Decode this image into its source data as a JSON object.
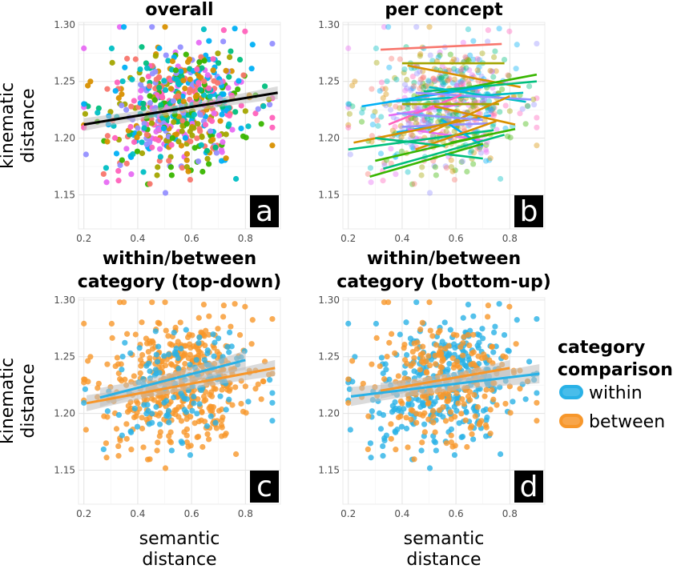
{
  "chart_data": [
    {
      "id": "a",
      "type": "scatter",
      "title": "overall",
      "panel_label": "a",
      "xlabel": "",
      "ylabel": "kinematic\ndistance",
      "xlim": [
        0.18,
        0.93
      ],
      "ylim": [
        1.12,
        1.302
      ],
      "xticks": [
        "0.2",
        "0.4",
        "0.6",
        "0.8"
      ],
      "yticks": [
        "1.15",
        "1.20",
        "1.25",
        "1.30"
      ],
      "point_colors": [
        "#F8766D",
        "#D89000",
        "#A3A500",
        "#39B600",
        "#00BF7D",
        "#00BFC4",
        "#00B0F6",
        "#9590FF",
        "#E76BF3",
        "#FF62BC"
      ],
      "fit_line": {
        "x": [
          0.2,
          0.92
        ],
        "y": [
          1.212,
          1.24
        ],
        "color": "#000000"
      },
      "band_color": "#bdbdbd"
    },
    {
      "id": "b",
      "type": "scatter",
      "title": "per concept",
      "panel_label": "b",
      "xlabel": "",
      "ylabel": "",
      "xlim": [
        0.18,
        0.93
      ],
      "ylim": [
        1.12,
        1.302
      ],
      "xticks": [
        "0.2",
        "0.4",
        "0.6",
        "0.8"
      ],
      "yticks": [
        "1.15",
        "1.20",
        "1.25",
        "1.30"
      ],
      "point_colors": [
        "#F8766D",
        "#D89000",
        "#A3A500",
        "#39B600",
        "#00BF7D",
        "#00BFC4",
        "#00B0F6",
        "#9590FF",
        "#E76BF3",
        "#FF62BC"
      ],
      "concept_lines": [
        {
          "color": "#F8766D",
          "x": [
            0.32,
            0.77
          ],
          "y": [
            1.278,
            1.283
          ]
        },
        {
          "color": "#A3A500",
          "x": [
            0.4,
            0.78
          ],
          "y": [
            1.266,
            1.266
          ]
        },
        {
          "color": "#D89000",
          "x": [
            0.42,
            0.84
          ],
          "y": [
            1.264,
            1.245
          ]
        },
        {
          "color": "#39B600",
          "x": [
            0.45,
            0.9
          ],
          "y": [
            1.236,
            1.256
          ]
        },
        {
          "color": "#00BF7D",
          "x": [
            0.48,
            0.9
          ],
          "y": [
            1.241,
            1.25
          ]
        },
        {
          "color": "#00BFC4",
          "x": [
            0.35,
            0.85
          ],
          "y": [
            1.232,
            1.24
          ]
        },
        {
          "color": "#00B0F6",
          "x": [
            0.25,
            0.7
          ],
          "y": [
            1.228,
            1.245
          ]
        },
        {
          "color": "#00BFC4",
          "x": [
            0.5,
            0.86
          ],
          "y": [
            1.245,
            1.232
          ]
        },
        {
          "color": "#9590FF",
          "x": [
            0.45,
            0.88
          ],
          "y": [
            1.24,
            1.234
          ]
        },
        {
          "color": "#E76BF3",
          "x": [
            0.35,
            0.65
          ],
          "y": [
            1.22,
            1.231
          ]
        },
        {
          "color": "#FF62BC",
          "x": [
            0.35,
            0.62
          ],
          "y": [
            1.212,
            1.238
          ]
        },
        {
          "color": "#00B0F6",
          "x": [
            0.38,
            0.73
          ],
          "y": [
            1.205,
            1.22
          ]
        },
        {
          "color": "#E76BF3",
          "x": [
            0.42,
            0.7
          ],
          "y": [
            1.208,
            1.198
          ]
        },
        {
          "color": "#9590FF",
          "x": [
            0.4,
            0.72
          ],
          "y": [
            1.21,
            1.213
          ]
        },
        {
          "color": "#00BF7D",
          "x": [
            0.2,
            0.74
          ],
          "y": [
            1.19,
            1.207
          ]
        },
        {
          "color": "#39B600",
          "x": [
            0.3,
            0.72
          ],
          "y": [
            1.18,
            1.203
          ]
        },
        {
          "color": "#00B0F6",
          "x": [
            0.55,
            0.7
          ],
          "y": [
            1.216,
            1.193
          ]
        },
        {
          "color": "#D89000",
          "x": [
            0.22,
            0.68
          ],
          "y": [
            1.196,
            1.218
          ]
        },
        {
          "color": "#D89000",
          "x": [
            0.52,
            0.82
          ],
          "y": [
            1.228,
            1.212
          ]
        },
        {
          "color": "#A3A500",
          "x": [
            0.4,
            0.76
          ],
          "y": [
            1.23,
            1.23
          ]
        },
        {
          "color": "#39B600",
          "x": [
            0.28,
            0.7
          ],
          "y": [
            1.166,
            1.195
          ]
        },
        {
          "color": "#00BF7D",
          "x": [
            0.33,
            0.78
          ],
          "y": [
            1.173,
            1.203
          ]
        },
        {
          "color": "#D89000",
          "x": [
            0.45,
            0.75
          ],
          "y": [
            1.19,
            1.215
          ]
        },
        {
          "color": "#39B600",
          "x": [
            0.58,
            0.82
          ],
          "y": [
            1.196,
            1.208
          ]
        },
        {
          "color": "#00BF7D",
          "x": [
            0.3,
            0.56
          ],
          "y": [
            1.2,
            1.193
          ]
        },
        {
          "color": "#00BF7D",
          "x": [
            0.56,
            0.7
          ],
          "y": [
            1.186,
            1.182
          ]
        },
        {
          "color": "#D89000",
          "x": [
            0.5,
            0.8
          ],
          "y": [
            1.205,
            1.237
          ]
        },
        {
          "color": "#9590FF",
          "x": [
            0.38,
            0.7
          ],
          "y": [
            1.222,
            1.216
          ]
        }
      ]
    },
    {
      "id": "c",
      "type": "scatter",
      "title": "within/between\ncategory (top-down)",
      "panel_label": "c",
      "xlabel": "semantic\ndistance",
      "ylabel": "kinematic\ndistance",
      "xlim": [
        0.18,
        0.93
      ],
      "ylim": [
        1.12,
        1.302
      ],
      "xticks": [
        "0.2",
        "0.4",
        "0.6",
        "0.8"
      ],
      "yticks": [
        "1.15",
        "1.20",
        "1.25",
        "1.30"
      ],
      "series": [
        {
          "name": "within",
          "color": "#29B1E6",
          "fit": {
            "x": [
              0.26,
              0.8
            ],
            "y": [
              1.214,
              1.247
            ]
          }
        },
        {
          "name": "between",
          "color": "#F7972B",
          "fit": {
            "x": [
              0.21,
              0.91
            ],
            "y": [
              1.209,
              1.24
            ]
          }
        }
      ],
      "band_color": "#bdbdbd"
    },
    {
      "id": "d",
      "type": "scatter",
      "title": "within/between\ncategory (bottom-up)",
      "panel_label": "d",
      "xlabel": "semantic\ndistance",
      "ylabel": "",
      "xlim": [
        0.18,
        0.93
      ],
      "ylim": [
        1.12,
        1.302
      ],
      "xticks": [
        "0.2",
        "0.4",
        "0.6",
        "0.8"
      ],
      "yticks": [
        "1.15",
        "1.20",
        "1.25",
        "1.30"
      ],
      "series": [
        {
          "name": "within",
          "color": "#29B1E6",
          "fit": {
            "x": [
              0.21,
              0.91
            ],
            "y": [
              1.215,
              1.235
            ]
          }
        },
        {
          "name": "between",
          "color": "#F7972B",
          "fit": {
            "x": [
              0.32,
              0.8
            ],
            "y": [
              1.22,
              1.24
            ]
          }
        }
      ],
      "band_color": "#bdbdbd"
    }
  ],
  "legend": {
    "title": "category\ncomparison",
    "items": [
      {
        "label": "within",
        "color": "#29B1E6"
      },
      {
        "label": "between",
        "color": "#F7972B"
      }
    ]
  }
}
